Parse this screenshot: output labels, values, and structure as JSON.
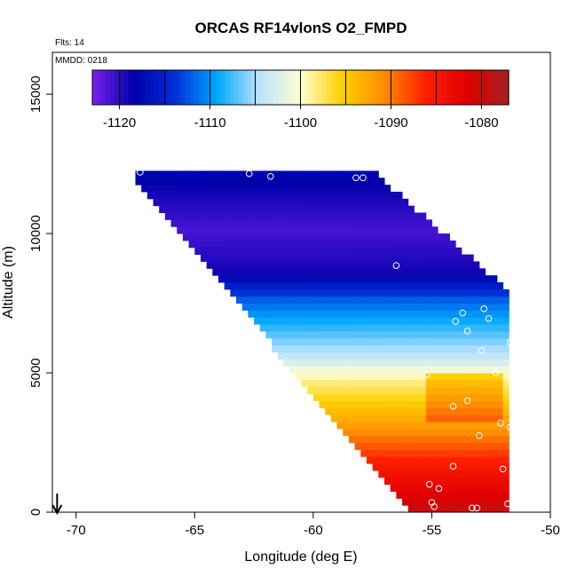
{
  "chart_data": {
    "type": "heatmap",
    "title": "ORCAS RF14vlonS O2_FMPD",
    "annotations": {
      "flights": "Flts: 14",
      "date": "MMDD: 0218"
    },
    "xlabel": "Longitude (deg E)",
    "ylabel": "Altitude (m)",
    "xlim": [
      -71,
      -50
    ],
    "ylim": [
      0,
      16500
    ],
    "x_ticks": [
      -70,
      -65,
      -60,
      -55,
      -50
    ],
    "x_tick_labels": [
      "-70",
      "-65",
      "-60",
      "-55",
      "-50"
    ],
    "y_ticks": [
      0,
      5000,
      10000,
      15000
    ],
    "y_tick_labels": [
      "0",
      "5000",
      "10000",
      "15000"
    ],
    "colorbar": {
      "range": [
        -1123,
        -1077
      ],
      "ticks": [
        -1120,
        -1110,
        -1100,
        -1090,
        -1080
      ],
      "tick_labels": [
        "-1120",
        "-1110",
        "-1100",
        "-1090",
        "-1080"
      ],
      "breaks": [
        -1120,
        -1115,
        -1110,
        -1105,
        -1100,
        -1095,
        -1090,
        -1085,
        -1080
      ],
      "colors": [
        "#7a22f0",
        "#0000aa",
        "#0030d8",
        "#00a8ff",
        "#b8e2ff",
        "#ffffd0",
        "#ffd000",
        "#ff8c00",
        "#ff2000",
        "#e00000",
        "#a52020"
      ]
    },
    "grid": false,
    "field": {
      "description_levels": [
        {
          "altitude": 0,
          "value": -1080
        },
        {
          "altitude": 1500,
          "value": -1085
        },
        {
          "altitude": 3000,
          "value": -1092
        },
        {
          "altitude": 4500,
          "value": -1098
        },
        {
          "altitude": 5500,
          "value": -1104
        },
        {
          "altitude": 7500,
          "value": -1112
        },
        {
          "altitude": 8500,
          "value": -1119
        },
        {
          "altitude": 10000,
          "value": -1121
        },
        {
          "altitude": 12000,
          "value": -1118
        }
      ]
    },
    "observation_points": [
      {
        "lon": -67.3,
        "alt": 12200
      },
      {
        "lon": -62.7,
        "alt": 12150
      },
      {
        "lon": -61.8,
        "alt": 12050
      },
      {
        "lon": -58.2,
        "alt": 12000
      },
      {
        "lon": -57.9,
        "alt": 12000
      },
      {
        "lon": -56.5,
        "alt": 8850
      },
      {
        "lon": -51.5,
        "alt": 7500
      },
      {
        "lon": -52.8,
        "alt": 7300
      },
      {
        "lon": -53.7,
        "alt": 7150
      },
      {
        "lon": -52.6,
        "alt": 6950
      },
      {
        "lon": -54.0,
        "alt": 6850
      },
      {
        "lon": -53.5,
        "alt": 6500
      },
      {
        "lon": -51.7,
        "alt": 6100
      },
      {
        "lon": -52.9,
        "alt": 5800
      },
      {
        "lon": -55.2,
        "alt": 4950
      },
      {
        "lon": -52.3,
        "alt": 5000
      },
      {
        "lon": -53.5,
        "alt": 4000
      },
      {
        "lon": -54.1,
        "alt": 3800
      },
      {
        "lon": -52.1,
        "alt": 3200
      },
      {
        "lon": -51.7,
        "alt": 3050
      },
      {
        "lon": -53.0,
        "alt": 2750
      },
      {
        "lon": -54.1,
        "alt": 1650
      },
      {
        "lon": -52.0,
        "alt": 1550
      },
      {
        "lon": -55.1,
        "alt": 1000
      },
      {
        "lon": -54.7,
        "alt": 850
      },
      {
        "lon": -55.0,
        "alt": 350
      },
      {
        "lon": -54.9,
        "alt": 200
      },
      {
        "lon": -51.8,
        "alt": 300
      },
      {
        "lon": -53.3,
        "alt": 150
      },
      {
        "lon": -53.1,
        "alt": 150
      }
    ],
    "arrow": {
      "lon": -70.8,
      "direction": "down"
    }
  }
}
